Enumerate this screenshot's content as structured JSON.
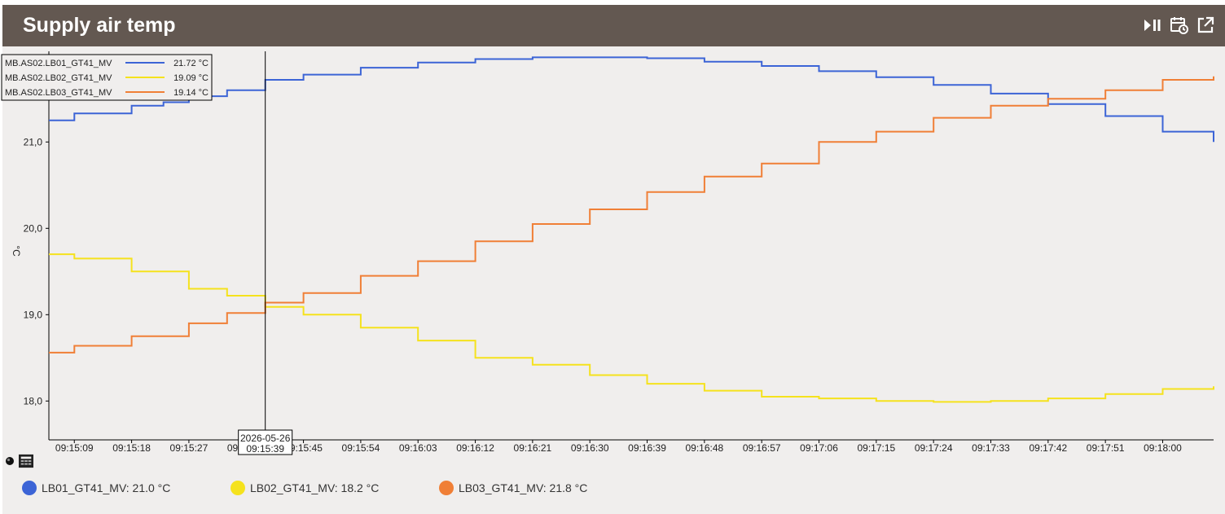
{
  "header": {
    "title": "Supply air temp"
  },
  "icons": {
    "play_pause": "play-pause-icon",
    "calendar": "calendar-clock-icon",
    "open_external": "open-external-icon",
    "point_marker": "point-marker-icon",
    "table": "table-icon"
  },
  "legend": [
    {
      "label": "LB01_GT41_MV: 21.0 °C",
      "color": "#3c64d6"
    },
    {
      "label": "LB02_GT41_MV: 18.2 °C",
      "color": "#f5e21d"
    },
    {
      "label": "LB03_GT41_MV: 21.8 °C",
      "color": "#f07f36"
    }
  ],
  "tooltip": {
    "rows": [
      {
        "name": "MB.AS02.LB01_GT41_MV",
        "value": "21.72 °C",
        "color": "#3c64d6"
      },
      {
        "name": "MB.AS02.LB02_GT41_MV",
        "value": "19.09 °C",
        "color": "#f5e21d"
      },
      {
        "name": "MB.AS02.LB03_GT41_MV",
        "value": "19.14 °C",
        "color": "#f07f36"
      }
    ],
    "cursor_date": "2026-05-26",
    "cursor_time": "09:15:39"
  },
  "chart_data": {
    "type": "line",
    "step": true,
    "ylabel": "°C",
    "ylim": [
      17.55,
      22.05
    ],
    "yticks": [
      18.0,
      19.0,
      20.0,
      21.0
    ],
    "ytick_labels": [
      "18,0",
      "19,0",
      "20,0",
      "21,0"
    ],
    "grid": false,
    "x_start": "09:15:05",
    "x_end": "09:18:08",
    "x_tick_labels": [
      "09:15:09",
      "09:15:18",
      "09:15:27",
      "09:15:36",
      "09:15:45",
      "09:15:54",
      "09:16:03",
      "09:16:12",
      "09:16:21",
      "09:16:30",
      "09:16:39",
      "09:16:48",
      "09:16:57",
      "09:17:06",
      "09:17:15",
      "09:17:24",
      "09:17:33",
      "09:17:42",
      "09:17:51",
      "09:18:00"
    ],
    "cursor_x": "09:15:39",
    "series": [
      {
        "name": "MB.AS02.LB01_GT41_MV",
        "color": "#3c64d6",
        "points": [
          [
            "09:15:05",
            21.25
          ],
          [
            "09:15:09",
            21.33
          ],
          [
            "09:15:18",
            21.42
          ],
          [
            "09:15:23",
            21.46
          ],
          [
            "09:15:27",
            21.53
          ],
          [
            "09:15:33",
            21.6
          ],
          [
            "09:15:39",
            21.72
          ],
          [
            "09:15:45",
            21.78
          ],
          [
            "09:15:54",
            21.86
          ],
          [
            "09:16:03",
            21.92
          ],
          [
            "09:16:12",
            21.96
          ],
          [
            "09:16:21",
            21.98
          ],
          [
            "09:16:30",
            21.98
          ],
          [
            "09:16:39",
            21.97
          ],
          [
            "09:16:48",
            21.93
          ],
          [
            "09:16:57",
            21.88
          ],
          [
            "09:17:06",
            21.82
          ],
          [
            "09:17:15",
            21.75
          ],
          [
            "09:17:24",
            21.66
          ],
          [
            "09:17:33",
            21.56
          ],
          [
            "09:17:42",
            21.44
          ],
          [
            "09:17:51",
            21.3
          ],
          [
            "09:18:00",
            21.12
          ],
          [
            "09:18:08",
            21.0
          ]
        ]
      },
      {
        "name": "MB.AS02.LB02_GT41_MV",
        "color": "#f5e21d",
        "points": [
          [
            "09:15:05",
            19.7
          ],
          [
            "09:15:09",
            19.65
          ],
          [
            "09:15:18",
            19.5
          ],
          [
            "09:15:27",
            19.3
          ],
          [
            "09:15:33",
            19.22
          ],
          [
            "09:15:39",
            19.09
          ],
          [
            "09:15:45",
            19.0
          ],
          [
            "09:15:54",
            18.85
          ],
          [
            "09:16:03",
            18.7
          ],
          [
            "09:16:12",
            18.5
          ],
          [
            "09:16:21",
            18.42
          ],
          [
            "09:16:30",
            18.3
          ],
          [
            "09:16:39",
            18.2
          ],
          [
            "09:16:48",
            18.12
          ],
          [
            "09:16:57",
            18.05
          ],
          [
            "09:17:06",
            18.03
          ],
          [
            "09:17:15",
            18.0
          ],
          [
            "09:17:24",
            17.99
          ],
          [
            "09:17:33",
            18.0
          ],
          [
            "09:17:42",
            18.03
          ],
          [
            "09:17:51",
            18.08
          ],
          [
            "09:18:00",
            18.14
          ],
          [
            "09:18:08",
            18.17
          ]
        ]
      },
      {
        "name": "MB.AS02.LB03_GT41_MV",
        "color": "#f07f36",
        "points": [
          [
            "09:15:05",
            18.56
          ],
          [
            "09:15:09",
            18.64
          ],
          [
            "09:15:18",
            18.75
          ],
          [
            "09:15:27",
            18.9
          ],
          [
            "09:15:33",
            19.02
          ],
          [
            "09:15:39",
            19.14
          ],
          [
            "09:15:45",
            19.25
          ],
          [
            "09:15:54",
            19.45
          ],
          [
            "09:16:03",
            19.62
          ],
          [
            "09:16:12",
            19.85
          ],
          [
            "09:16:21",
            20.05
          ],
          [
            "09:16:30",
            20.22
          ],
          [
            "09:16:39",
            20.42
          ],
          [
            "09:16:48",
            20.6
          ],
          [
            "09:16:57",
            20.75
          ],
          [
            "09:17:06",
            21.0
          ],
          [
            "09:17:15",
            21.12
          ],
          [
            "09:17:24",
            21.28
          ],
          [
            "09:17:33",
            21.42
          ],
          [
            "09:17:42",
            21.5
          ],
          [
            "09:17:51",
            21.6
          ],
          [
            "09:18:00",
            21.72
          ],
          [
            "09:18:08",
            21.76
          ]
        ]
      }
    ]
  }
}
